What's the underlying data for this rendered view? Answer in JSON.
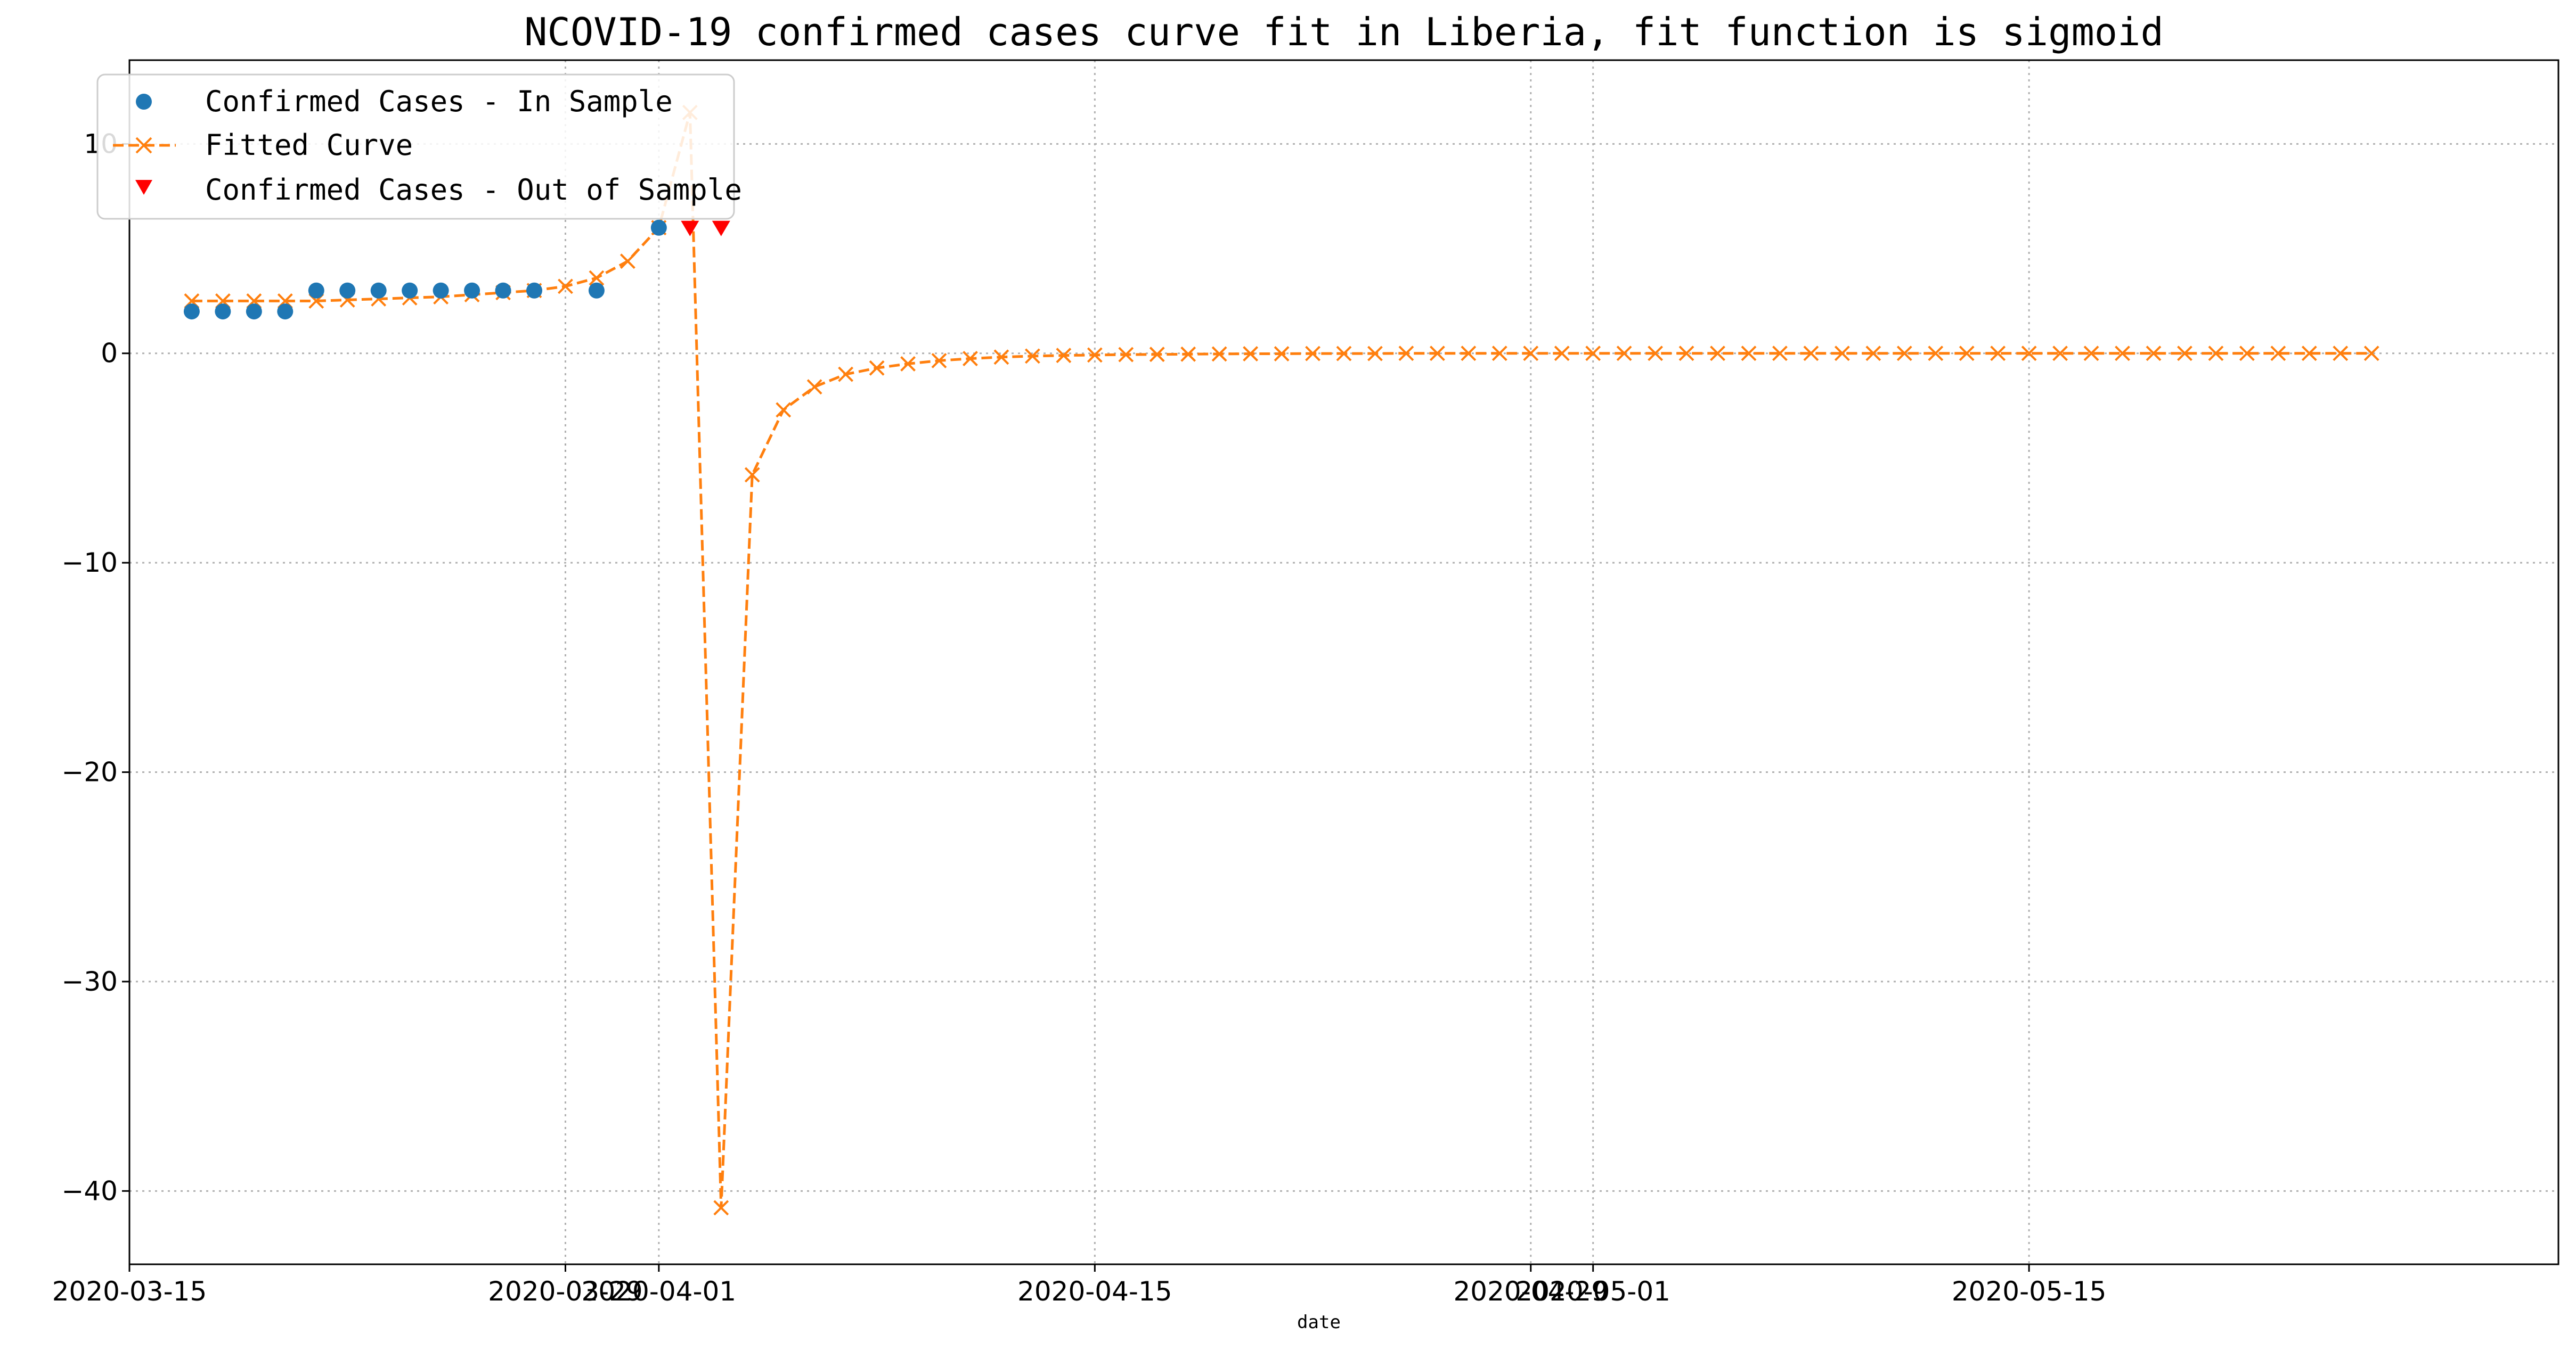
{
  "chart_data": {
    "type": "line",
    "title": "NCOVID-19 confirmed cases curve fit in Liberia, fit function is sigmoid",
    "xlabel": "date",
    "ylabel": "",
    "x_ticks": [
      "2020-03-15",
      "2020-03-29",
      "2020-04-01",
      "2020-04-15",
      "2020-04-29",
      "2020-05-01",
      "2020-05-15"
    ],
    "y_ticks": [
      10,
      0,
      -10,
      -20,
      -30,
      -40
    ],
    "xlim": [
      "2020-03-15",
      "2020-06-01"
    ],
    "ylim": [
      -43.5,
      14
    ],
    "grid": true,
    "legend_position": "top-left",
    "series": [
      {
        "name": "Confirmed Cases - In Sample",
        "kind": "scatter",
        "marker": "circle",
        "color": "#1f77b4",
        "x": [
          "2020-03-17",
          "2020-03-18",
          "2020-03-19",
          "2020-03-20",
          "2020-03-21",
          "2020-03-22",
          "2020-03-23",
          "2020-03-24",
          "2020-03-25",
          "2020-03-26",
          "2020-03-27",
          "2020-03-28",
          "2020-03-30",
          "2020-04-01"
        ],
        "y": [
          2,
          2,
          2,
          2,
          3,
          3,
          3,
          3,
          3,
          3,
          3,
          3,
          3,
          6
        ]
      },
      {
        "name": "Fitted Curve",
        "kind": "line",
        "marker": "x",
        "line_style": "dashed",
        "color": "#ff7f0e",
        "x": [
          "2020-03-17",
          "2020-03-18",
          "2020-03-19",
          "2020-03-20",
          "2020-03-21",
          "2020-03-22",
          "2020-03-23",
          "2020-03-24",
          "2020-03-25",
          "2020-03-26",
          "2020-03-27",
          "2020-03-28",
          "2020-03-29",
          "2020-03-30",
          "2020-03-31",
          "2020-04-01",
          "2020-04-02",
          "2020-04-03",
          "2020-04-04",
          "2020-04-05",
          "2020-04-06",
          "2020-04-07",
          "2020-04-08",
          "2020-04-09",
          "2020-04-10",
          "2020-04-11",
          "2020-04-12",
          "2020-04-13",
          "2020-04-14",
          "2020-04-15",
          "2020-04-16",
          "2020-04-17",
          "2020-04-18",
          "2020-04-19",
          "2020-04-20",
          "2020-04-21",
          "2020-04-22",
          "2020-04-23",
          "2020-04-24",
          "2020-04-25",
          "2020-04-26",
          "2020-04-27",
          "2020-04-28",
          "2020-04-29",
          "2020-04-30",
          "2020-05-01",
          "2020-05-02",
          "2020-05-03",
          "2020-05-04",
          "2020-05-05",
          "2020-05-06",
          "2020-05-07",
          "2020-05-08",
          "2020-05-09",
          "2020-05-10",
          "2020-05-11",
          "2020-05-12",
          "2020-05-13",
          "2020-05-14",
          "2020-05-15",
          "2020-05-16",
          "2020-05-17",
          "2020-05-18",
          "2020-05-19",
          "2020-05-20",
          "2020-05-21",
          "2020-05-22",
          "2020-05-23",
          "2020-05-24",
          "2020-05-25",
          "2020-05-26"
        ],
        "y": [
          2.5,
          2.5,
          2.5,
          2.5,
          2.5,
          2.55,
          2.6,
          2.65,
          2.7,
          2.8,
          2.9,
          3.0,
          3.2,
          3.6,
          4.4,
          6.0,
          11.5,
          -40.8,
          -5.8,
          -2.7,
          -1.6,
          -1.0,
          -0.7,
          -0.5,
          -0.35,
          -0.25,
          -0.18,
          -0.13,
          -0.1,
          -0.08,
          -0.06,
          -0.05,
          -0.04,
          -0.03,
          -0.02,
          -0.02,
          -0.01,
          -0.01,
          -0.01,
          0,
          0,
          0,
          0,
          0,
          0,
          0,
          0,
          0,
          0,
          0,
          0,
          0,
          0,
          0,
          0,
          0,
          0,
          0,
          0,
          0,
          0,
          0,
          0,
          0,
          0,
          0,
          0,
          0,
          0,
          0,
          0
        ]
      },
      {
        "name": "Confirmed Cases - Out of Sample",
        "kind": "scatter",
        "marker": "triangle-down",
        "color": "#ff0000",
        "x": [
          "2020-04-02",
          "2020-04-03"
        ],
        "y": [
          6,
          6
        ]
      }
    ]
  }
}
